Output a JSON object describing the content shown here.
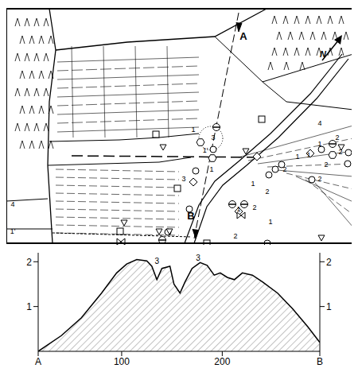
{
  "map": {
    "north": "N",
    "labels": [
      "A",
      "B",
      "1",
      "3",
      "3",
      "1'",
      "1",
      "1'",
      "4",
      "4",
      "1",
      "2",
      "2",
      "1",
      "2",
      "2",
      "1",
      "2",
      "1",
      "2",
      "1",
      "2",
      "1",
      "2"
    ]
  },
  "chart_data": {
    "type": "area",
    "x": [
      17,
      40,
      60,
      80,
      95,
      105,
      115,
      125,
      130,
      135,
      140,
      148,
      152,
      158,
      163,
      170,
      178,
      185,
      192,
      198,
      205,
      212,
      220,
      230,
      240,
      255,
      270,
      285,
      297
    ],
    "values": [
      0,
      0.35,
      0.75,
      1.3,
      1.75,
      1.95,
      2.05,
      2.02,
      1.9,
      1.6,
      1.85,
      1.9,
      1.5,
      1.3,
      1.55,
      1.85,
      1.98,
      1.92,
      1.7,
      1.75,
      1.65,
      1.6,
      1.75,
      1.7,
      1.55,
      1.3,
      0.95,
      0.55,
      0.2
    ],
    "color": "#000000",
    "xlim": [
      17,
      297
    ],
    "xticks": [
      {
        "value": 17,
        "label": "A"
      },
      100,
      200,
      {
        "value": 297,
        "label": "B"
      }
    ],
    "ylim": [
      0,
      2.2
    ],
    "yticks": [
      1,
      2
    ],
    "y2lim": [
      0,
      2.2
    ],
    "y2ticks": [
      1,
      2
    ],
    "annotations": [
      {
        "x": 135,
        "y": 2.02,
        "text": "3"
      },
      {
        "x": 176,
        "y": 2.08,
        "text": "3"
      }
    ]
  }
}
